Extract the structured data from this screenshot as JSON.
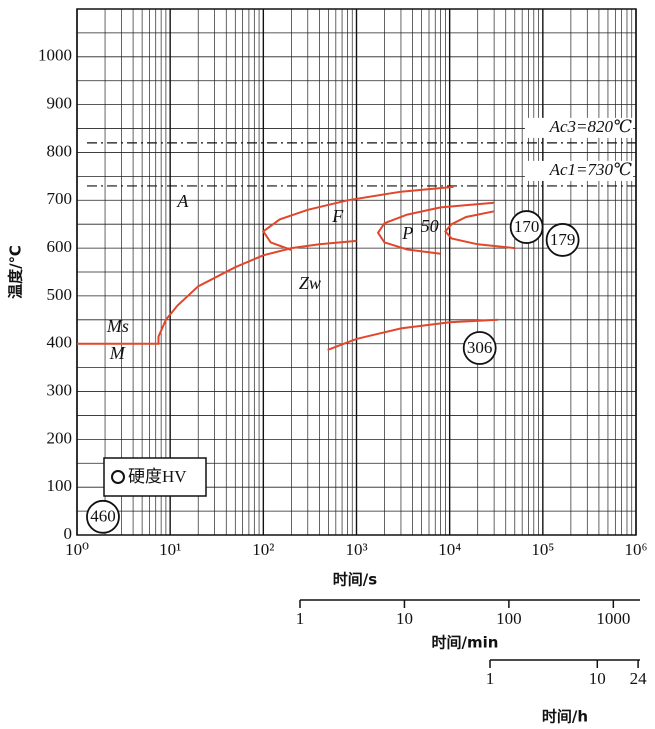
{
  "chart_data": {
    "type": "line",
    "xlabel": "时间/s",
    "ylabel": "温度/℃",
    "xscale": "log",
    "xlim": [
      1,
      1000000
    ],
    "xticks": [
      {
        "value": 1,
        "label": "10⁰"
      },
      {
        "value": 10,
        "label": "10¹"
      },
      {
        "value": 100,
        "label": "10²"
      },
      {
        "value": 1000,
        "label": "10³"
      },
      {
        "value": 10000,
        "label": "10⁴"
      },
      {
        "value": 100000,
        "label": "10⁵"
      },
      {
        "value": 1000000,
        "label": "10⁶"
      }
    ],
    "ylim": [
      0,
      1100
    ],
    "yticks": [
      0,
      100,
      200,
      300,
      400,
      500,
      600,
      700,
      800,
      900,
      1000
    ],
    "yminorticks": [
      50,
      150,
      250,
      350,
      450,
      550,
      650,
      750,
      850,
      950,
      1050,
      1100
    ],
    "grid": true,
    "series": [
      {
        "color": "#e2462b",
        "x": [
          1,
          7.5,
          7.5,
          9,
          12,
          20,
          50,
          100,
          200,
          400,
          1000
        ],
        "values": [
          400,
          400,
          415,
          450,
          480,
          520,
          560,
          585,
          600,
          608,
          615
        ]
      },
      {
        "color": "#e2462b",
        "x": [
          11000,
          3000,
          800,
          300,
          150,
          100,
          120,
          200
        ],
        "values": [
          728,
          718,
          700,
          680,
          660,
          635,
          612,
          596
        ]
      },
      {
        "color": "#e2462b",
        "x": [
          30000,
          8000,
          3500,
          2000,
          1700,
          2000,
          3500,
          8000
        ],
        "values": [
          695,
          685,
          670,
          652,
          632,
          612,
          597,
          588
        ]
      },
      {
        "color": "#e2462b",
        "x": [
          30000,
          15000,
          10500,
          9000,
          10500,
          20000,
          50000
        ],
        "values": [
          677,
          665,
          650,
          635,
          620,
          608,
          600
        ]
      },
      {
        "color": "#e2462b",
        "x": [
          490,
          1000,
          3000,
          10000,
          33000
        ],
        "values": [
          387,
          410,
          432,
          445,
          450
        ]
      }
    ],
    "reference_lines": [
      {
        "label": "Ac3=820℃",
        "value": 820
      },
      {
        "label": "Ac1=730℃",
        "value": 730
      }
    ],
    "annotations": [
      {
        "text": "A",
        "x": 13.7,
        "y": 695
      },
      {
        "text": "F",
        "x": 630,
        "y": 663
      },
      {
        "text": "P",
        "x": 3550,
        "y": 628
      },
      {
        "text": "50",
        "x": 6100,
        "y": 642
      },
      {
        "text": "Zw",
        "x": 316,
        "y": 523
      },
      {
        "text": "Ms",
        "x": 2.75,
        "y": 433
      },
      {
        "text": "M",
        "x": 2.7,
        "y": 377
      }
    ],
    "hardness": {
      "name": "硬度HV",
      "x": [
        1.9,
        67000,
        163000,
        21000
      ],
      "y": [
        38,
        644,
        617,
        391
      ],
      "values": [
        460,
        170,
        179,
        306
      ]
    },
    "secondary_axes": [
      {
        "label": "时间/min",
        "xlim": [
          1,
          1800
        ],
        "xticks": [
          1,
          10,
          100,
          1000
        ]
      },
      {
        "label": "时间/h",
        "xlim": [
          1,
          25
        ],
        "xticks": [
          1,
          10,
          24
        ]
      }
    ]
  }
}
